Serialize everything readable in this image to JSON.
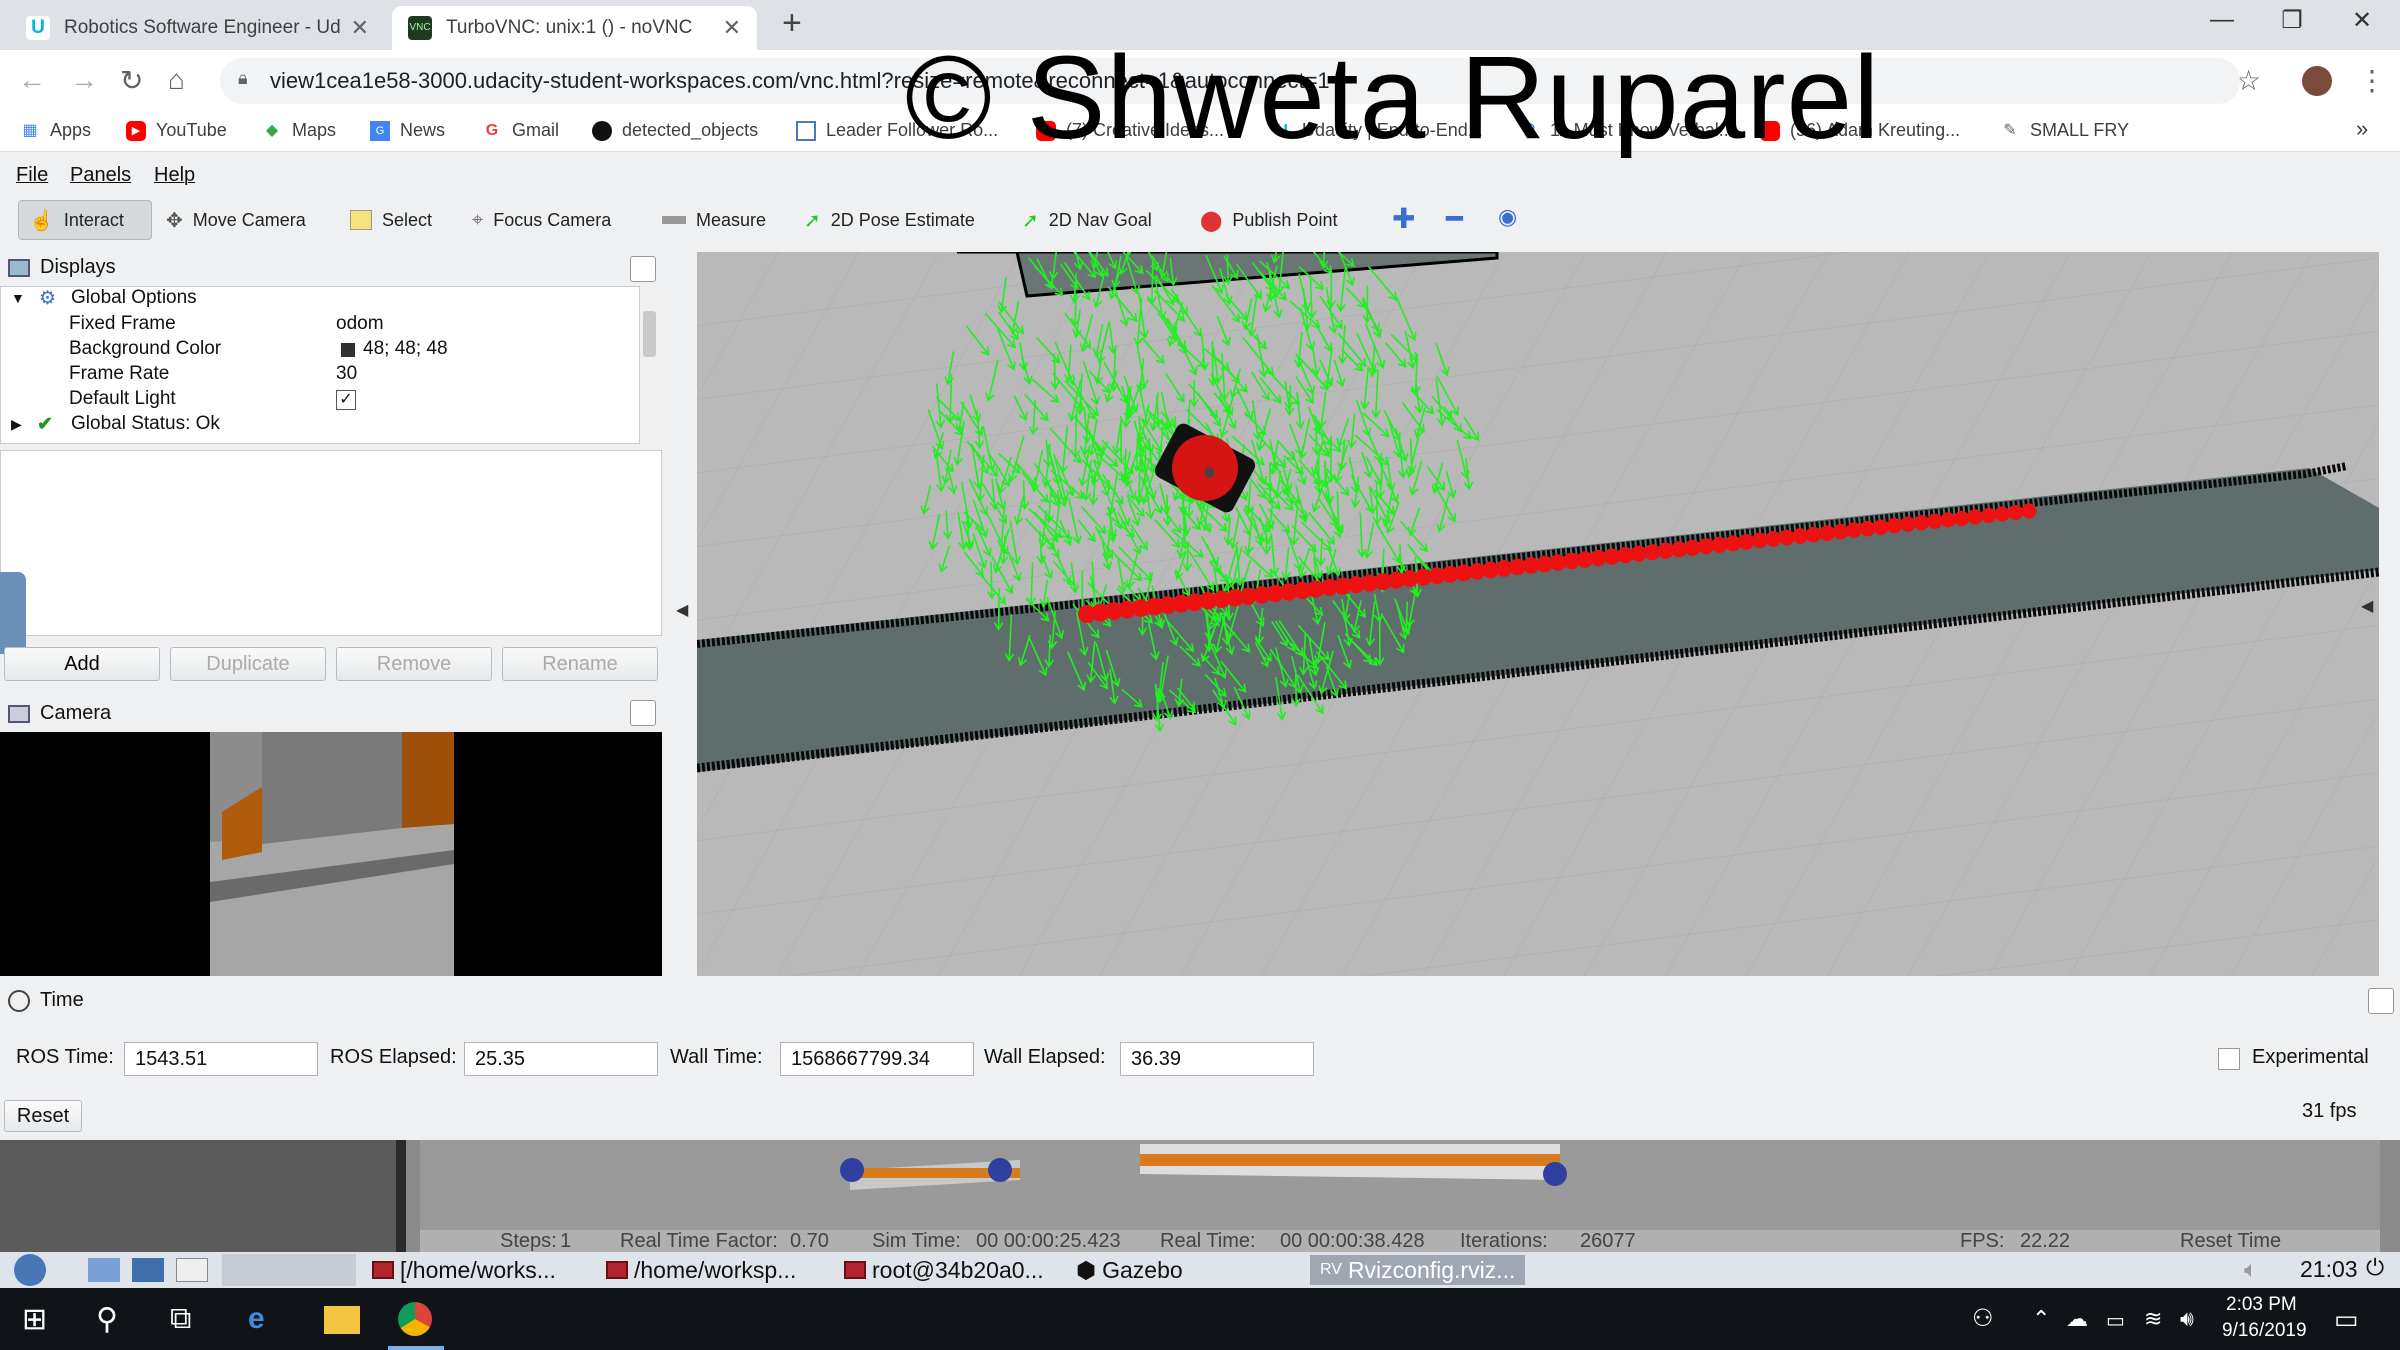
{
  "browser": {
    "tabs": [
      {
        "title": "Robotics Software Engineer - Uda",
        "close": "✕"
      },
      {
        "title": "TurboVNC: unix:1 () - noVNC",
        "close": "✕"
      }
    ],
    "new_tab": "+",
    "window_controls": {
      "minimize": "—",
      "restore": "❐",
      "close": "✕"
    },
    "url": "view1cea1e58-3000.udacity-student-workspaces.com/vnc.html?resize=remote&reconnect=1&autoconnect=1",
    "bookmarks": [
      "Apps",
      "YouTube",
      "Maps",
      "News",
      "Gmail",
      "detected_objects",
      "Leader Follower Ro...",
      "(7) Creative Ideas...",
      "Udacity | End-to-End...",
      "11 Must Know Verbal...",
      "(56) Adam Kreuting...",
      "SMALL FRY"
    ],
    "bookmarks_more": "»"
  },
  "watermark": "© Shweta Ruparel",
  "rviz": {
    "menu": [
      "File",
      "Panels",
      "Help"
    ],
    "tools": [
      "Interact",
      "Move Camera",
      "Select",
      "Focus Camera",
      "Measure",
      "2D Pose Estimate",
      "2D Nav Goal",
      "Publish Point"
    ],
    "displays": {
      "title": "Displays",
      "global_options": "Global Options",
      "rows": [
        {
          "key": "Fixed Frame",
          "value": "odom"
        },
        {
          "key": "Background Color",
          "value": "48; 48; 48"
        },
        {
          "key": "Frame Rate",
          "value": "30"
        },
        {
          "key": "Default Light",
          "value": "✓"
        }
      ],
      "status": "Global Status: Ok"
    },
    "buttons": {
      "add": "Add",
      "duplicate": "Duplicate",
      "remove": "Remove",
      "rename": "Rename"
    },
    "camera_title": "Camera",
    "time": {
      "title": "Time",
      "ros_time_label": "ROS Time:",
      "ros_time": "1543.51",
      "ros_elapsed_label": "ROS Elapsed:",
      "ros_elapsed": "25.35",
      "wall_time_label": "Wall Time:",
      "wall_time": "1568667799.34",
      "wall_elapsed_label": "Wall Elapsed:",
      "wall_elapsed": "36.39",
      "experimental": "Experimental",
      "reset": "Reset",
      "fps": "31 fps"
    }
  },
  "gazebo_status": {
    "steps_label": "Steps:",
    "steps": "1",
    "rtf_label": "Real Time Factor:",
    "rtf": "0.70",
    "sim_label": "Sim Time:",
    "sim": "00 00:00:25.423",
    "real_label": "Real Time:",
    "real": "00 00:00:38.428",
    "iter_label": "Iterations:",
    "iter": "26077",
    "fps_label": "FPS:",
    "fps": "22.22",
    "reset": "Reset Time"
  },
  "linux_taskbar": {
    "tasks": [
      "[/home/works...",
      "/home/worksp...",
      "root@34b20a0...",
      "Gazebo",
      "Rvizconfig.rviz..."
    ],
    "clock": "21:03"
  },
  "windows_taskbar": {
    "time": "2:03 PM",
    "date": "9/16/2019"
  },
  "colors": {
    "particle": "#22ee22",
    "path": "#ee1111",
    "corridor": "#5d6b6b",
    "grid_bg": "#b5b5b5"
  }
}
